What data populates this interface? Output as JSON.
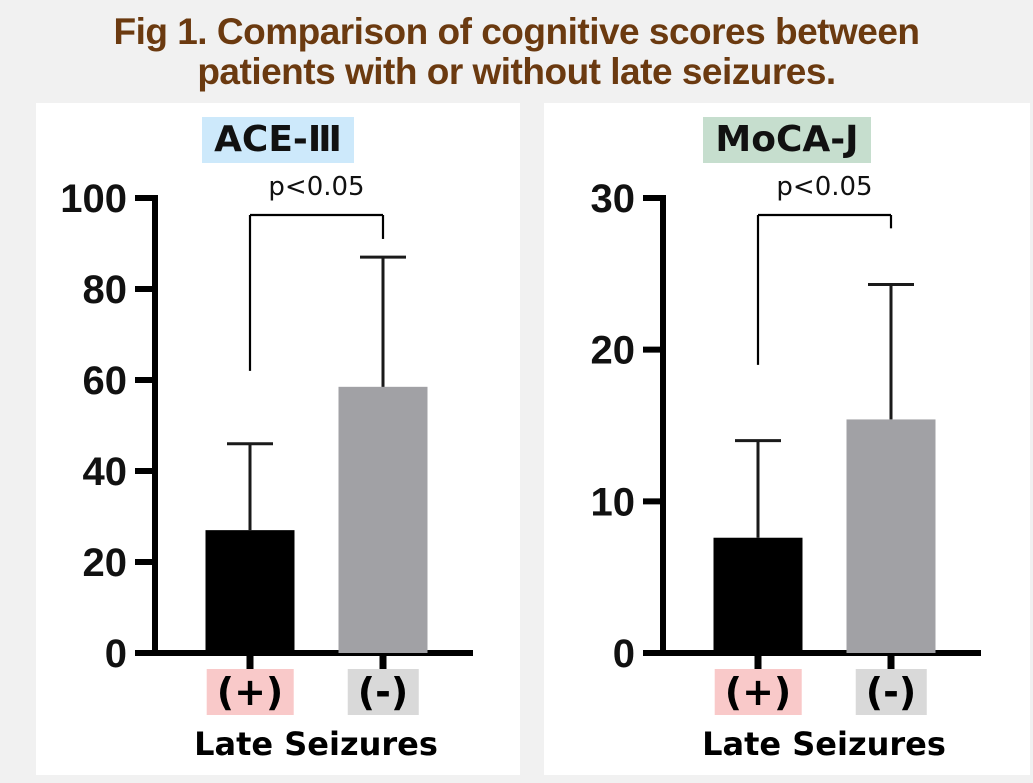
{
  "figure": {
    "title_line1": "Fig 1. Comparison of cognitive scores between",
    "title_line2": "patients with or without late seizures.",
    "title_color": "#6b3a10",
    "background_color": "#f1f1f1",
    "panel_color": "#ffffff"
  },
  "chart_data": [
    {
      "type": "bar",
      "title": "ACE-Ⅲ",
      "title_highlight": "#cde9fb",
      "categories": [
        "(+)",
        "(-)"
      ],
      "category_highlights": [
        "#f9c9c9",
        "#d9d9d9"
      ],
      "values": [
        27,
        58.5
      ],
      "error_tops": [
        46,
        87
      ],
      "bar_colors": [
        "#000000",
        "#a1a1a5"
      ],
      "significance": "p<0.05",
      "bracket": {
        "left_drop_to": 62,
        "right_drop_to": 91
      },
      "xlabel": "Late Seizures",
      "ylabel": "",
      "ylim": [
        0,
        100
      ],
      "yticks": [
        0,
        20,
        40,
        60,
        80,
        100
      ],
      "grid": false,
      "legend": "none"
    },
    {
      "type": "bar",
      "title": "MoCA-J",
      "title_highlight": "#c6dece",
      "categories": [
        "(+)",
        "(-)"
      ],
      "category_highlights": [
        "#f9c9c9",
        "#d9d9d9"
      ],
      "values": [
        7.6,
        15.4
      ],
      "error_tops": [
        14,
        24.3
      ],
      "bar_colors": [
        "#000000",
        "#a1a1a5"
      ],
      "significance": "p<0.05",
      "bracket": {
        "left_drop_to": 19,
        "right_drop_to": 28
      },
      "xlabel": "Late Seizures",
      "ylabel": "",
      "ylim": [
        0,
        30
      ],
      "yticks": [
        0,
        10,
        20,
        30
      ],
      "grid": false,
      "legend": "none"
    }
  ]
}
